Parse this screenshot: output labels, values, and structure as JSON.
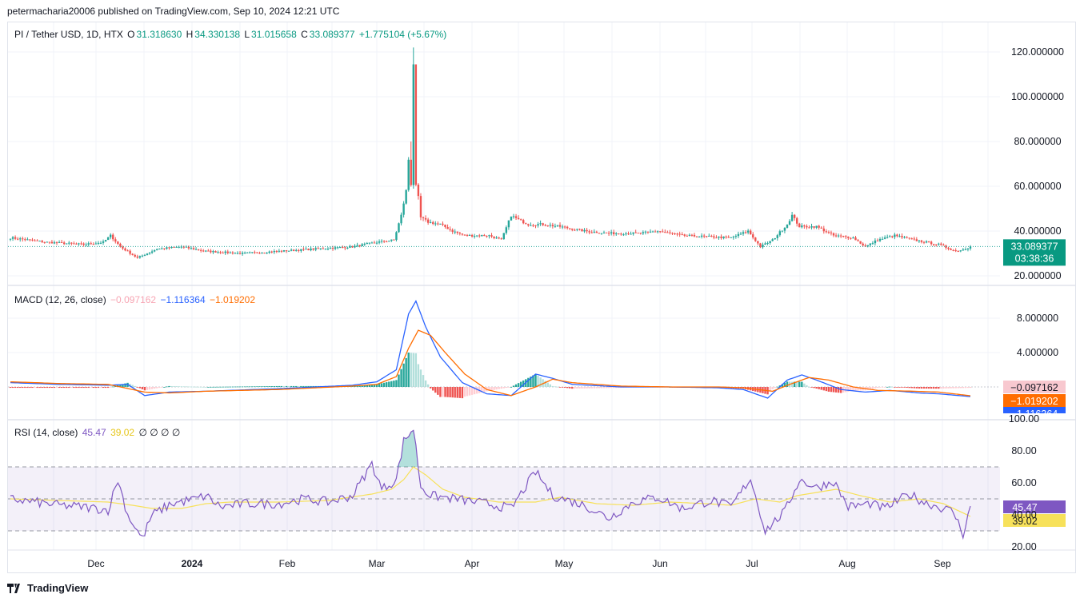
{
  "header": {
    "published": "petermacharia20006 published on TradingView.com, Sep 10, 2024 12:21 UTC"
  },
  "price_legend": {
    "symbol": "PI / Tether USD, 1D, HTX",
    "o_label": "O",
    "o": "31.318630",
    "h_label": "H",
    "h": "34.330138",
    "l_label": "L",
    "l": "31.015658",
    "c_label": "C",
    "c": "33.089377",
    "change": "+1.775104 (+5.67%)"
  },
  "macd_legend": {
    "title": "MACD (12, 26, close)",
    "hist": "−0.097162",
    "macd": "−1.116364",
    "signal": "−1.019202"
  },
  "rsi_legend": {
    "title": "RSI (14, close)",
    "rsi": "45.47",
    "ma": "39.02",
    "empty": "∅ ∅ ∅ ∅"
  },
  "footer": {
    "brand": "TradingView"
  },
  "colors": {
    "up": "#26a69a",
    "down": "#ef5350",
    "macd": "#2962ff",
    "signal": "#ff6d00",
    "rsi": "#7e57c2",
    "rsi_ma": "#f7e15a"
  },
  "chart_data": [
    {
      "type": "candlestick",
      "title": "PI / Tether USD, 1D, HTX",
      "x_ticks": [
        "Dec",
        "2024",
        "Feb",
        "Mar",
        "Apr",
        "May",
        "Jun",
        "Jul",
        "Aug",
        "Sep"
      ],
      "y_ticks": [
        "20.000000",
        "40.000000",
        "60.000000",
        "80.000000",
        "100.000000",
        "120.000000"
      ],
      "ylim": [
        15,
        124
      ],
      "last_price_label": "33.089377",
      "countdown_label": "03:38:36",
      "last_price": 33.09,
      "anchors": [
        [
          0,
          37
        ],
        [
          15,
          35
        ],
        [
          30,
          34
        ],
        [
          38,
          35
        ],
        [
          41,
          38
        ],
        [
          45,
          33
        ],
        [
          52,
          28
        ],
        [
          60,
          32
        ],
        [
          70,
          33
        ],
        [
          80,
          31
        ],
        [
          95,
          30
        ],
        [
          110,
          31
        ],
        [
          125,
          32
        ],
        [
          140,
          33
        ],
        [
          150,
          35
        ],
        [
          157,
          36
        ],
        [
          160,
          47
        ],
        [
          162,
          58
        ],
        [
          163,
          72
        ],
        [
          164,
          61
        ],
        [
          165,
          115
        ],
        [
          166,
          60
        ],
        [
          167,
          55
        ],
        [
          168,
          46
        ],
        [
          171,
          44
        ],
        [
          176,
          43
        ],
        [
          181,
          40
        ],
        [
          186,
          38
        ],
        [
          196,
          38
        ],
        [
          201,
          36
        ],
        [
          205,
          47
        ],
        [
          208,
          45
        ],
        [
          212,
          43
        ],
        [
          218,
          43
        ],
        [
          225,
          42
        ],
        [
          235,
          40
        ],
        [
          245,
          39
        ],
        [
          258,
          39
        ],
        [
          265,
          40
        ],
        [
          275,
          38
        ],
        [
          295,
          37
        ],
        [
          302,
          40
        ],
        [
          307,
          33
        ],
        [
          312,
          36
        ],
        [
          318,
          43
        ],
        [
          320,
          47
        ],
        [
          323,
          42
        ],
        [
          330,
          42
        ],
        [
          337,
          38
        ],
        [
          345,
          37
        ],
        [
          350,
          33
        ],
        [
          355,
          36
        ],
        [
          362,
          38
        ],
        [
          370,
          36
        ],
        [
          380,
          34
        ],
        [
          387,
          31
        ],
        [
          391,
          32
        ],
        [
          393,
          33.09
        ]
      ]
    },
    {
      "type": "line",
      "title": "MACD (12, 26, close)",
      "y_ticks": [
        "4.000000",
        "8.000000"
      ],
      "ylim": [
        -3.2,
        11.4
      ],
      "values_labels": [
        "−0.097162",
        "−1.019202",
        "−1.116364"
      ],
      "series": [
        {
          "name": "MACD",
          "anchors": [
            [
              0,
              0.5
            ],
            [
              20,
              0.3
            ],
            [
              40,
              0.2
            ],
            [
              48,
              0.3
            ],
            [
              55,
              -1.0
            ],
            [
              65,
              -0.6
            ],
            [
              80,
              -0.5
            ],
            [
              110,
              -0.2
            ],
            [
              140,
              0.2
            ],
            [
              150,
              0.6
            ],
            [
              158,
              2.0
            ],
            [
              163,
              8.5
            ],
            [
              166,
              10.0
            ],
            [
              170,
              7.0
            ],
            [
              176,
              3.5
            ],
            [
              185,
              0.5
            ],
            [
              195,
              -0.8
            ],
            [
              205,
              -1.0
            ],
            [
              215,
              1.5
            ],
            [
              222,
              1.0
            ],
            [
              230,
              0.3
            ],
            [
              250,
              0.0
            ],
            [
              270,
              0.0
            ],
            [
              290,
              -0.1
            ],
            [
              300,
              -0.3
            ],
            [
              310,
              -1.3
            ],
            [
              318,
              0.8
            ],
            [
              324,
              1.4
            ],
            [
              330,
              0.8
            ],
            [
              340,
              -0.3
            ],
            [
              350,
              -0.6
            ],
            [
              360,
              -0.4
            ],
            [
              372,
              -0.7
            ],
            [
              380,
              -0.8
            ],
            [
              393,
              -1.12
            ]
          ]
        },
        {
          "name": "Signal",
          "anchors": [
            [
              0,
              0.6
            ],
            [
              20,
              0.4
            ],
            [
              40,
              0.3
            ],
            [
              55,
              -0.6
            ],
            [
              65,
              -0.7
            ],
            [
              80,
              -0.5
            ],
            [
              110,
              -0.3
            ],
            [
              140,
              0.1
            ],
            [
              150,
              0.3
            ],
            [
              158,
              1.2
            ],
            [
              163,
              4.5
            ],
            [
              167,
              6.6
            ],
            [
              172,
              6.0
            ],
            [
              178,
              4.0
            ],
            [
              186,
              1.5
            ],
            [
              195,
              -0.3
            ],
            [
              205,
              -1.0
            ],
            [
              215,
              0.0
            ],
            [
              222,
              0.9
            ],
            [
              230,
              0.5
            ],
            [
              250,
              0.1
            ],
            [
              270,
              0.0
            ],
            [
              290,
              0.0
            ],
            [
              300,
              -0.1
            ],
            [
              312,
              -0.5
            ],
            [
              320,
              0.4
            ],
            [
              327,
              1.1
            ],
            [
              335,
              0.8
            ],
            [
              345,
              0.0
            ],
            [
              355,
              -0.4
            ],
            [
              370,
              -0.5
            ],
            [
              380,
              -0.6
            ],
            [
              393,
              -1.02
            ]
          ]
        }
      ]
    },
    {
      "type": "line",
      "title": "RSI (14, close)",
      "y_ticks": [
        "20.00",
        "40.00",
        "60.00",
        "80.00",
        "100.00"
      ],
      "ylim": [
        20,
        95
      ],
      "band": [
        30,
        70
      ],
      "mid": 50,
      "series": [
        {
          "name": "RSI",
          "anchors": [
            [
              0,
              50
            ],
            [
              10,
              48
            ],
            [
              20,
              46
            ],
            [
              30,
              45
            ],
            [
              40,
              43
            ],
            [
              44,
              62
            ],
            [
              48,
              40
            ],
            [
              54,
              25
            ],
            [
              58,
              40
            ],
            [
              66,
              47
            ],
            [
              76,
              50
            ],
            [
              80,
              52
            ],
            [
              86,
              45
            ],
            [
              96,
              47
            ],
            [
              110,
              47
            ],
            [
              120,
              50
            ],
            [
              130,
              48
            ],
            [
              140,
              52
            ],
            [
              148,
              72
            ],
            [
              152,
              56
            ],
            [
              158,
              62
            ],
            [
              161,
              86
            ],
            [
              165,
              94
            ],
            [
              168,
              58
            ],
            [
              172,
              52
            ],
            [
              182,
              50
            ],
            [
              195,
              47
            ],
            [
              205,
              44
            ],
            [
              215,
              67
            ],
            [
              222,
              52
            ],
            [
              235,
              46
            ],
            [
              245,
              38
            ],
            [
              255,
              48
            ],
            [
              265,
              51
            ],
            [
              275,
              44
            ],
            [
              287,
              49
            ],
            [
              295,
              45
            ],
            [
              303,
              63
            ],
            [
              309,
              30
            ],
            [
              317,
              42
            ],
            [
              323,
              62
            ],
            [
              330,
              57
            ],
            [
              337,
              61
            ],
            [
              343,
              45
            ],
            [
              352,
              47
            ],
            [
              358,
              44
            ],
            [
              368,
              53
            ],
            [
              374,
              48
            ],
            [
              386,
              42
            ],
            [
              390,
              28
            ],
            [
              393,
              45.47
            ]
          ]
        },
        {
          "name": "RSI MA",
          "anchors": [
            [
              0,
              50
            ],
            [
              20,
              49
            ],
            [
              40,
              48
            ],
            [
              50,
              46
            ],
            [
              58,
              44
            ],
            [
              70,
              44
            ],
            [
              80,
              47
            ],
            [
              90,
              48
            ],
            [
              110,
              48
            ],
            [
              130,
              49
            ],
            [
              148,
              53
            ],
            [
              156,
              56
            ],
            [
              161,
              62
            ],
            [
              165,
              70
            ],
            [
              170,
              65
            ],
            [
              177,
              56
            ],
            [
              186,
              51
            ],
            [
              200,
              48
            ],
            [
              215,
              48
            ],
            [
              225,
              51
            ],
            [
              240,
              47
            ],
            [
              255,
              46
            ],
            [
              270,
              48
            ],
            [
              285,
              47
            ],
            [
              295,
              46
            ],
            [
              305,
              50
            ],
            [
              315,
              48
            ],
            [
              322,
              52
            ],
            [
              330,
              54
            ],
            [
              338,
              56
            ],
            [
              348,
              52
            ],
            [
              360,
              48
            ],
            [
              372,
              50
            ],
            [
              382,
              47
            ],
            [
              393,
              39.02
            ]
          ]
        }
      ]
    }
  ]
}
